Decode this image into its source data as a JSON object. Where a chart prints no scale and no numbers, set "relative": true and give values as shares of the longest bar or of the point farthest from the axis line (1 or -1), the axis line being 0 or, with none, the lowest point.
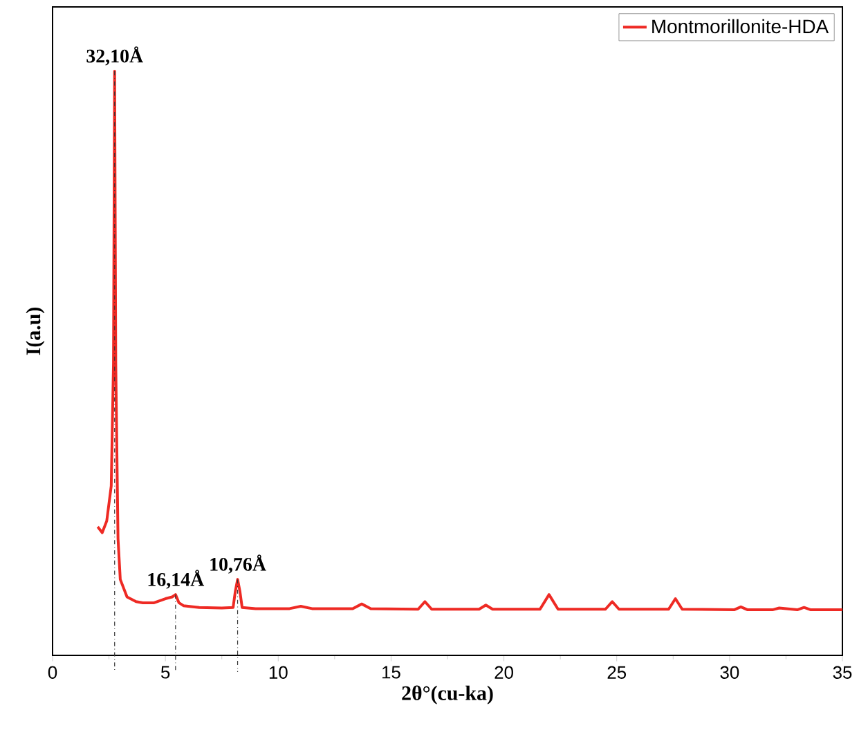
{
  "chart_data": {
    "type": "line",
    "relative": true,
    "xlabel": "2θ°(cu-ka)",
    "ylabel": "I(a.u)",
    "legend": "top right",
    "xlim": [
      0,
      35
    ],
    "xticks": [
      0,
      5,
      10,
      15,
      20,
      25,
      30,
      35
    ],
    "series": [
      {
        "name": "Montmorillonite-HDA",
        "color": "#ee2a24",
        "x": [
          2.0,
          2.2,
          2.4,
          2.6,
          2.7,
          2.75,
          2.8,
          2.9,
          3.0,
          3.3,
          3.7,
          4.0,
          4.5,
          5.0,
          5.3,
          5.45,
          5.6,
          5.8,
          6.5,
          7.5,
          8.0,
          8.1,
          8.2,
          8.3,
          8.4,
          9.0,
          10.5,
          11.0,
          11.5,
          13.3,
          13.7,
          14.1,
          16.2,
          16.5,
          16.8,
          18.9,
          19.2,
          19.5,
          21.6,
          22.0,
          22.4,
          24.5,
          24.8,
          25.1,
          27.3,
          27.6,
          27.9,
          30.2,
          30.5,
          30.8,
          31.9,
          32.2,
          33.0,
          33.3,
          33.6,
          35.0
        ],
        "values": [
          0.22,
          0.21,
          0.23,
          0.29,
          0.5,
          1.0,
          0.5,
          0.2,
          0.13,
          0.1,
          0.092,
          0.09,
          0.09,
          0.097,
          0.1,
          0.104,
          0.09,
          0.085,
          0.082,
          0.081,
          0.082,
          0.11,
          0.13,
          0.11,
          0.082,
          0.08,
          0.08,
          0.084,
          0.08,
          0.08,
          0.088,
          0.08,
          0.079,
          0.092,
          0.079,
          0.079,
          0.086,
          0.079,
          0.079,
          0.104,
          0.079,
          0.079,
          0.092,
          0.079,
          0.079,
          0.097,
          0.079,
          0.078,
          0.083,
          0.078,
          0.078,
          0.081,
          0.078,
          0.082,
          0.078,
          0.078
        ]
      }
    ],
    "ref_lines": [
      {
        "axis": "x",
        "value": 2.75,
        "color": "#333333",
        "line_style": "dashdotted"
      },
      {
        "axis": "x",
        "value": 5.45,
        "color": "#333333",
        "line_style": "dashdotted"
      },
      {
        "axis": "x",
        "value": 8.2,
        "color": "#333333",
        "line_style": "dashdotted"
      }
    ],
    "annotations": [
      {
        "text": "32,10Å",
        "x": 2.75,
        "y": 1.0
      },
      {
        "text": "16,14Å",
        "x": 5.45,
        "y": 0.104
      },
      {
        "text": "10,76Å",
        "x": 8.2,
        "y": 0.13
      }
    ]
  }
}
